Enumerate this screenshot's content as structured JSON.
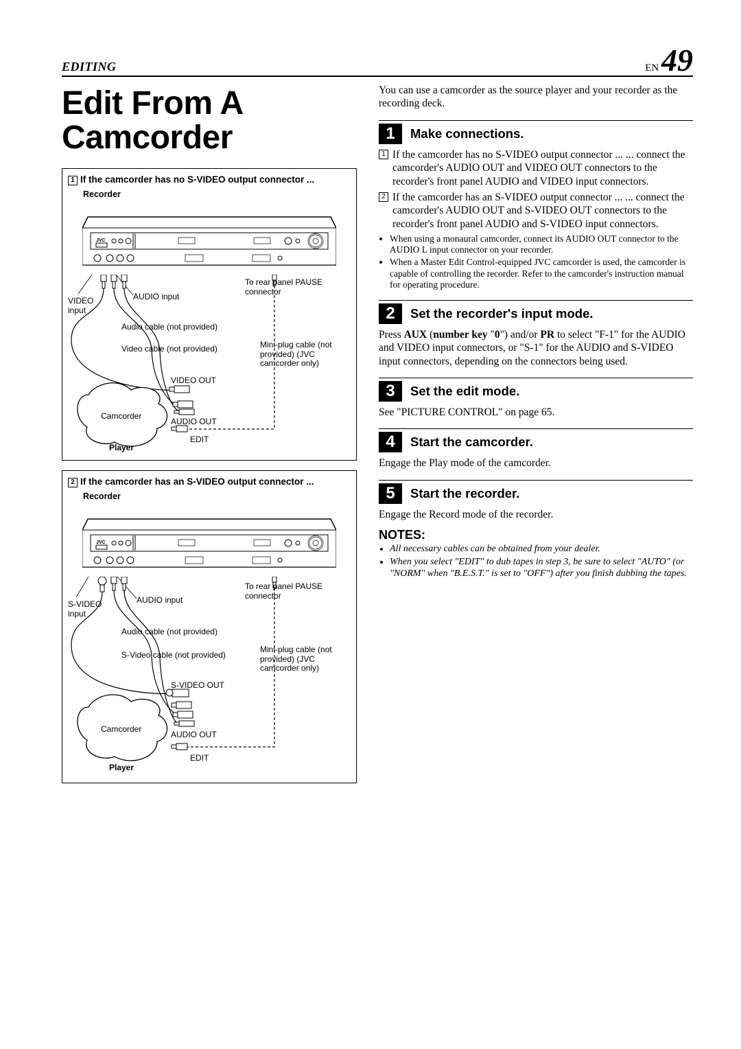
{
  "header": {
    "section": "EDITING",
    "lang": "EN",
    "page_number": "49"
  },
  "title": "Edit From A Camcorder",
  "diagram1": {
    "box_title_prefix": "1",
    "box_title": "If the camcorder has no S-VIDEO output connector ...",
    "recorder_label": "Recorder",
    "video_input": "VIDEO input",
    "audio_input": "AUDIO input",
    "rear_pause": "To rear panel PAUSE connector",
    "audio_cable": "Audio cable (not provided)",
    "video_cable": "Video cable (not provided)",
    "miniplug": "Mini-plug cable (not provided) (JVC camcorder only)",
    "video_out": "VIDEO OUT",
    "audio_out": "AUDIO OUT",
    "camcorder": "Camcorder",
    "edit": "EDIT",
    "player": "Player"
  },
  "diagram2": {
    "box_title_prefix": "2",
    "box_title": "If the camcorder has an S-VIDEO output connector ...",
    "recorder_label": "Recorder",
    "svideo_input": "S-VIDEO input",
    "audio_input": "AUDIO input",
    "rear_pause": "To rear panel PAUSE connector",
    "audio_cable": "Audio cable (not provided)",
    "svideo_cable": "S-Video cable (not provided)",
    "miniplug": "Mini-plug cable (not provided) (JVC camcorder only)",
    "svideo_out": "S-VIDEO OUT",
    "audio_out": "AUDIO OUT",
    "camcorder": "Camcorder",
    "edit": "EDIT",
    "player": "Player"
  },
  "intro": "You can use a camcorder as the source player and your recorder as the recording deck.",
  "steps": [
    {
      "num": "1",
      "title": "Make connections.",
      "sublist": [
        {
          "n": "1",
          "text": "If the camcorder has no S-VIDEO output connector ... ... connect the camcorder's AUDIO OUT and VIDEO OUT connectors to the recorder's front panel AUDIO and VIDEO input connectors."
        },
        {
          "n": "2",
          "text": "If the camcorder has an S-VIDEO output connector ... ... connect the camcorder's AUDIO OUT and S-VIDEO OUT connectors to the recorder's front panel AUDIO and S-VIDEO input connectors."
        }
      ],
      "bullets": [
        "When using a monaural camcorder, connect its AUDIO OUT connector to the AUDIO L input connector on your recorder.",
        "When a Master Edit Control-equipped JVC camcorder is used, the camcorder is capable of controlling the recorder. Refer to the camcorder's instruction manual for operating procedure."
      ]
    },
    {
      "num": "2",
      "title": "Set the recorder's input mode.",
      "body_html": "Press <b>AUX</b> (<b>number key</b> \"<b>0</b>\") and/or <b>PR</b> to select \"F-1\" for the AUDIO and VIDEO input connectors, or \"S-1\" for the AUDIO and S-VIDEO input connectors, depending on the connectors being used."
    },
    {
      "num": "3",
      "title": "Set the edit mode.",
      "body": "See \"PICTURE CONTROL\" on page 65."
    },
    {
      "num": "4",
      "title": "Start the camcorder.",
      "body": "Engage the Play mode of the camcorder."
    },
    {
      "num": "5",
      "title": "Start the recorder.",
      "body": "Engage the Record mode of the recorder."
    }
  ],
  "notes_heading": "NOTES:",
  "notes": [
    "All necessary cables can be obtained from your dealer.",
    "When you select \"EDIT\" to dub tapes in step 3, be sure to select \"AUTO\" (or \"NORM\" when \"B.E.S.T.\" is set to \"OFF\") after you finish dubbing the tapes."
  ],
  "colors": {
    "text": "#000000",
    "bg": "#ffffff",
    "rule": "#000000"
  }
}
